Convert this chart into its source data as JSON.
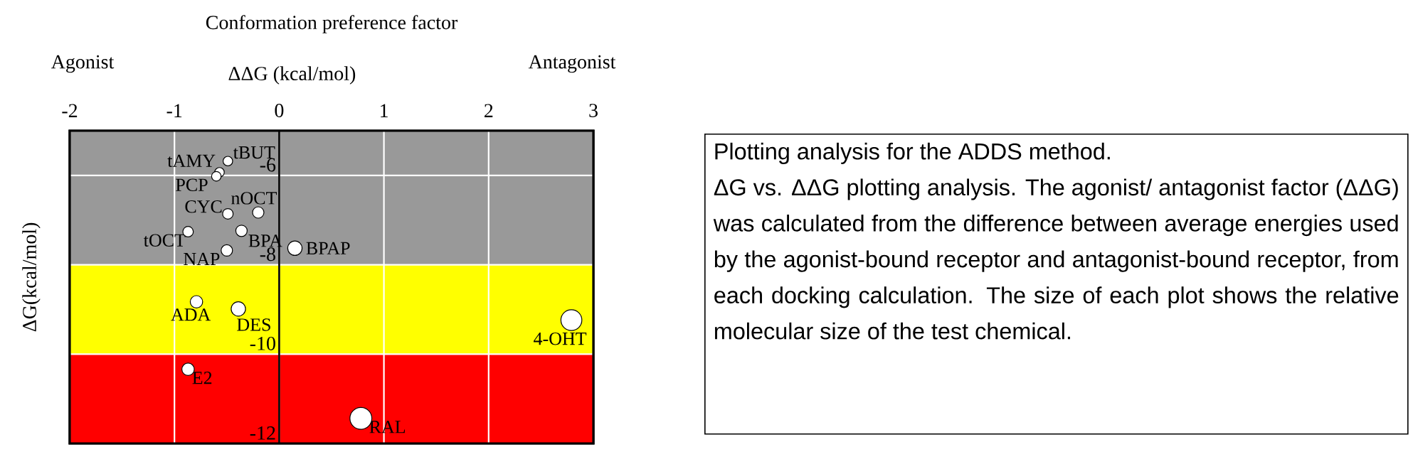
{
  "chart_data": {
    "type": "bubble",
    "title": "Conformation preference factor",
    "xlabel": "ΔΔG (kcal/mol)",
    "ylabel": "ΔG(kcal/mol)",
    "x": [
      -0.49,
      -0.57,
      -0.6,
      -0.49,
      -0.2,
      -0.87,
      -0.36,
      -0.5,
      0.15,
      -0.79,
      -0.39,
      2.79,
      -0.87,
      0.78
    ],
    "values": [
      -5.68,
      -5.93,
      -6.02,
      -6.86,
      -6.83,
      -7.26,
      -7.24,
      -7.68,
      -7.63,
      -8.83,
      -8.99,
      -9.24,
      -10.34,
      -11.44
    ],
    "sizes": [
      0.19,
      0.19,
      0.19,
      0.23,
      0.27,
      0.23,
      0.27,
      0.27,
      0.43,
      0.32,
      0.43,
      0.91,
      0.32,
      1
    ],
    "color": "#ffffff",
    "marker": "circle",
    "xlim": [
      -2,
      3
    ],
    "ylim": [
      -12,
      -5
    ],
    "xticks": [
      -2,
      -1,
      0,
      1,
      2,
      3
    ],
    "yticks": [
      -12,
      -10,
      -8,
      -6
    ],
    "grid": true,
    "bands": [
      {
        "axis": "y",
        "from": -8,
        "to": -5,
        "color": "#999999"
      },
      {
        "axis": "y",
        "from": -10,
        "to": -8,
        "color": "#ffff00"
      },
      {
        "axis": "y",
        "from": -12,
        "to": -10,
        "color": "#ff0000"
      }
    ],
    "annotations": [
      "Agonist",
      "Antagonist",
      "Plotting analysis for the ADDS method.",
      "ΔG vs. ΔΔG plotting analysis. The agonist/ antagonist factor (ΔΔG) was calculated from the difference between average energies used by the agonist-bound receptor and antagonist-bound receptor, from each docking calculation. The size of each plot shows the relative molecular size of the test chemical.",
      {
        "text": "tBUT",
        "x": -0.49,
        "y": -5.68
      },
      {
        "text": "tAMY",
        "x": -0.57,
        "y": -5.93
      },
      {
        "text": "PCP",
        "x": -0.6,
        "y": -6.02
      },
      {
        "text": "CYC",
        "x": -0.49,
        "y": -6.86
      },
      {
        "text": "nOCT",
        "x": -0.2,
        "y": -6.83
      },
      {
        "text": "tOCT",
        "x": -0.87,
        "y": -7.26
      },
      {
        "text": "BPA",
        "x": -0.36,
        "y": -7.24
      },
      {
        "text": "NAP",
        "x": -0.5,
        "y": -7.68
      },
      {
        "text": "BPAP",
        "x": 0.15,
        "y": -7.63
      },
      {
        "text": "ADA",
        "x": -0.79,
        "y": -8.83
      },
      {
        "text": "DES",
        "x": -0.39,
        "y": -8.99
      },
      {
        "text": "4-OHT",
        "x": 2.79,
        "y": -9.24
      },
      {
        "text": "E2",
        "x": -0.87,
        "y": -10.34
      },
      {
        "text": "RAL",
        "x": 0.78,
        "y": -11.44
      }
    ]
  }
}
